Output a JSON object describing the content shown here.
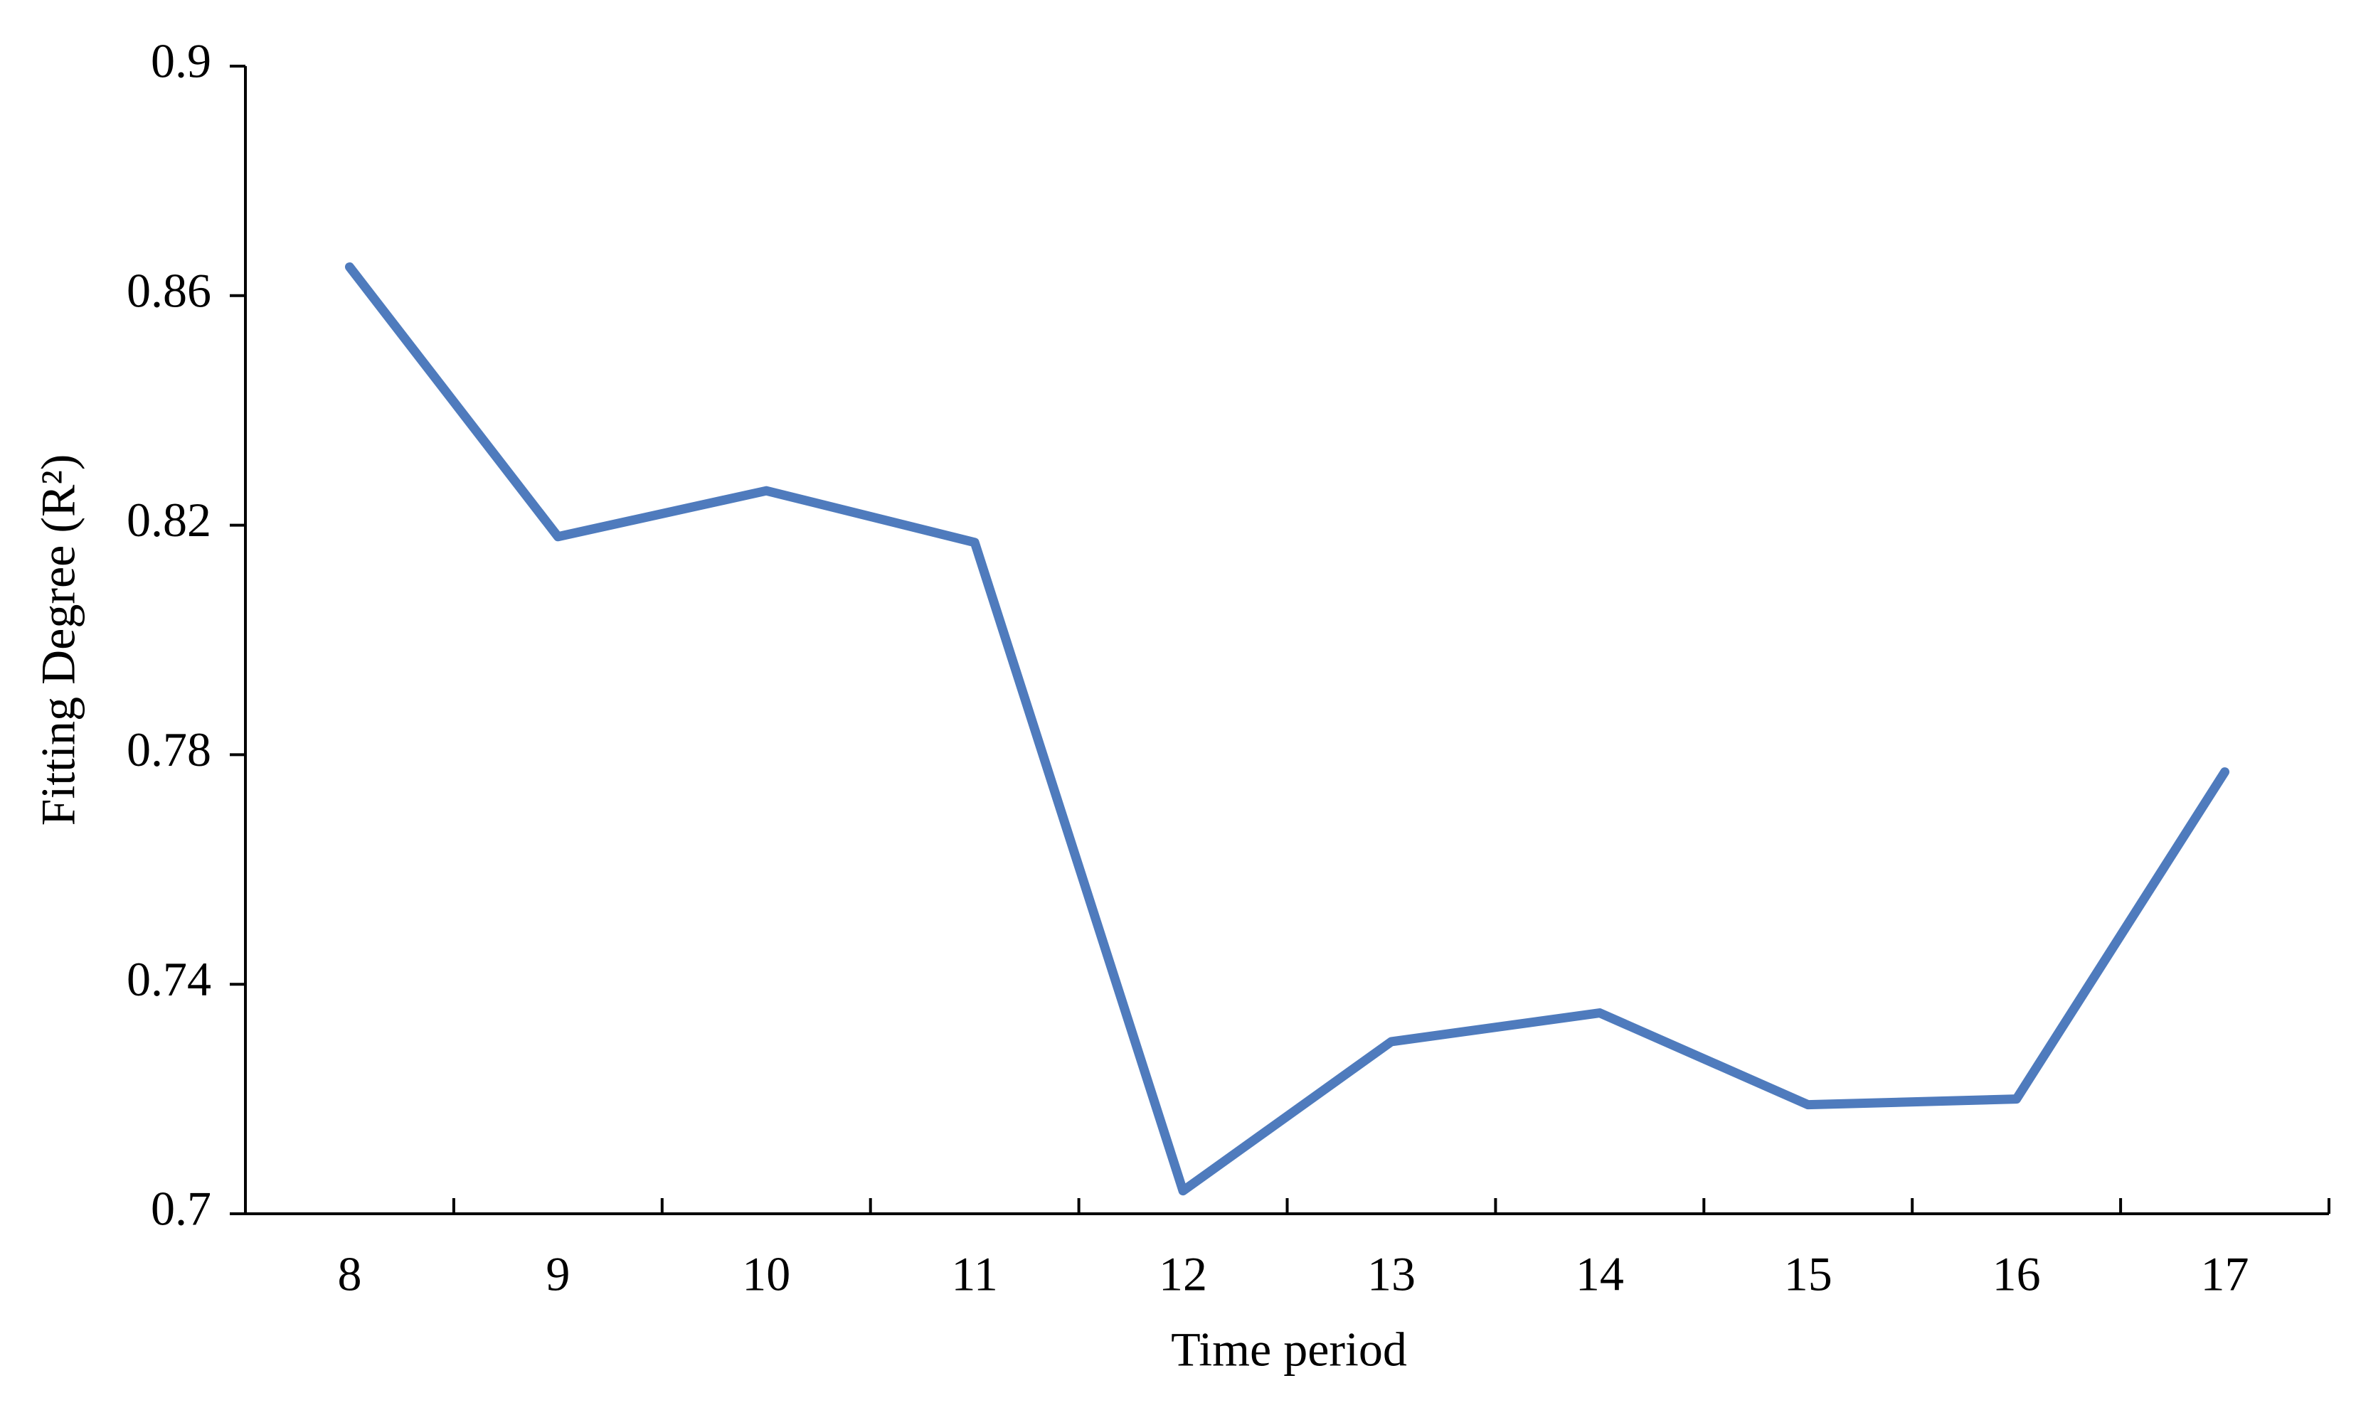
{
  "chart_data": {
    "type": "line",
    "x_label": "Time period",
    "y_label": "Fitting Degree (R²)",
    "categories": [
      "8",
      "9",
      "10",
      "11",
      "12",
      "13",
      "14",
      "15",
      "16",
      "17"
    ],
    "series": [
      {
        "color": "#4f7bbd",
        "values": [
          0.865,
          0.818,
          0.826,
          0.817,
          0.704,
          0.73,
          0.735,
          0.719,
          0.72,
          0.777
        ]
      }
    ],
    "ylim": [
      0.7,
      0.9
    ],
    "yticks": [
      0.7,
      0.74,
      0.78,
      0.82,
      0.86,
      0.9
    ],
    "grid": false
  }
}
